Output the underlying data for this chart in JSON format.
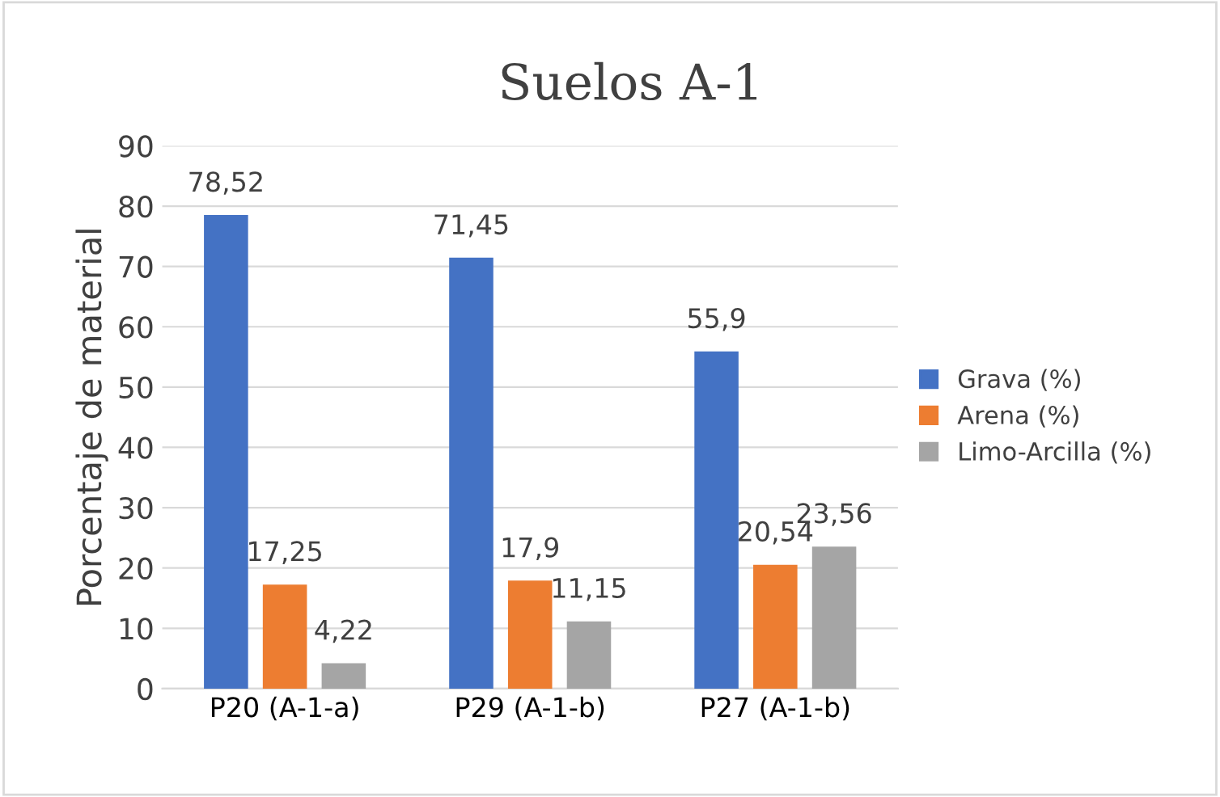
{
  "chart_data": {
    "type": "bar",
    "title": "Suelos A-1",
    "ylabel": "Porcentaje de material",
    "categories": [
      "P20 (A-1-a)",
      "P29 (A-1-b)",
      "P27 (A-1-b)"
    ],
    "series": [
      {
        "name": "Grava (%)",
        "color": "#4472c4",
        "values": [
          78.52,
          71.45,
          55.9
        ],
        "value_labels": [
          "78,52",
          "71,45",
          "55,9"
        ]
      },
      {
        "name": "Arena (%)",
        "color": "#ed7d31",
        "values": [
          17.25,
          17.9,
          20.54
        ],
        "value_labels": [
          "17,25",
          "17,9",
          "20,54"
        ]
      },
      {
        "name": "Limo-Arcilla (%)",
        "color": "#a5a5a5",
        "values": [
          4.22,
          11.15,
          23.56
        ],
        "value_labels": [
          "4,22",
          "11,15",
          "23,56"
        ]
      }
    ],
    "ylim": [
      0,
      90
    ],
    "yticks": [
      0,
      10,
      20,
      30,
      40,
      50,
      60,
      70,
      80,
      90
    ],
    "grid": "y",
    "legend": "right"
  }
}
